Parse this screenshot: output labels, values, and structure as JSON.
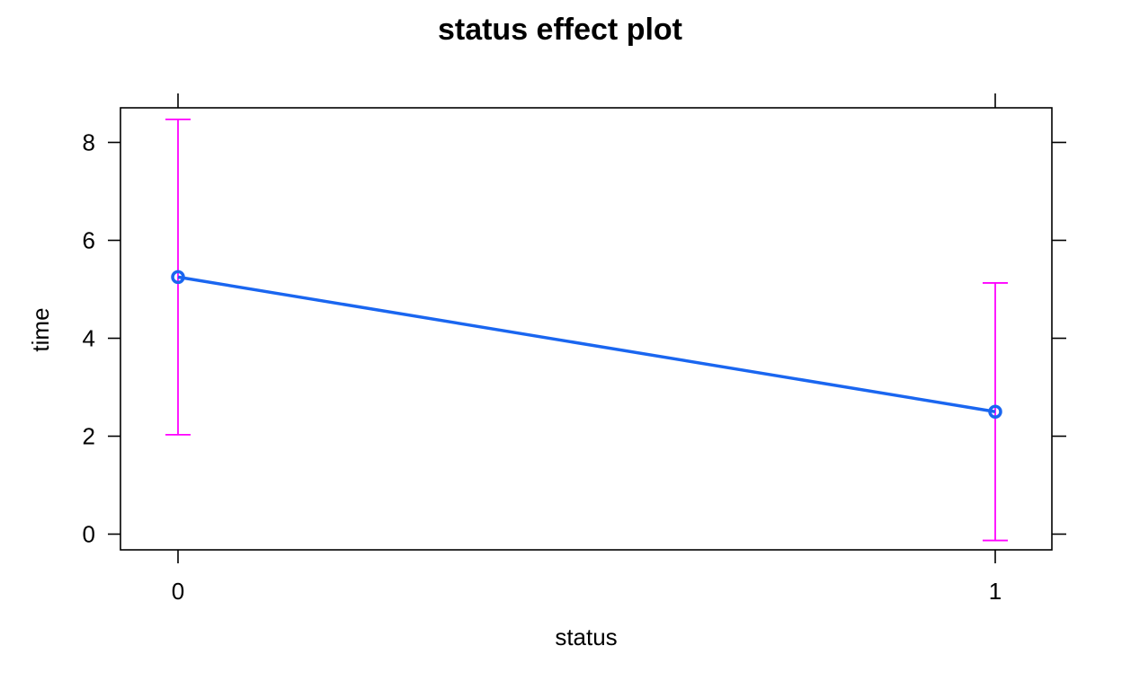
{
  "chart_data": {
    "type": "line",
    "title": "status effect plot",
    "xlabel": "status",
    "ylabel": "time",
    "categories": [
      "0",
      "1"
    ],
    "series": [
      {
        "values": [
          5.25,
          2.5
        ],
        "lower": [
          2.03,
          -0.13
        ],
        "upper": [
          8.47,
          5.13
        ]
      }
    ],
    "yticks": [
      "0",
      "2",
      "4",
      "6",
      "8"
    ],
    "ylim": [
      -0.3,
      8.7
    ],
    "grid": false,
    "line_color": "#1a66f0",
    "errorbar_color": "#ff00ff"
  }
}
